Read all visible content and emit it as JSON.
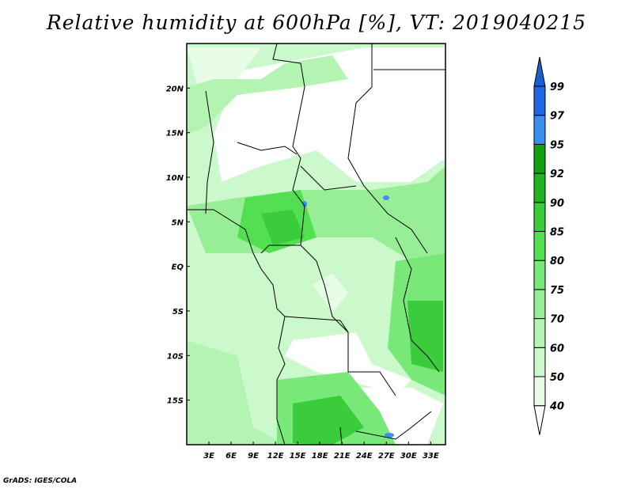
{
  "title": "Relative humidity at 600hPa [%], VT: 2019040215",
  "footer": "GrADS: IGES/COLA",
  "map": {
    "lon_range": [
      0,
      35
    ],
    "lat_range": [
      -20,
      25
    ],
    "x_ticks": [
      {
        "value": 3,
        "label": "3E"
      },
      {
        "value": 6,
        "label": "6E"
      },
      {
        "value": 9,
        "label": "9E"
      },
      {
        "value": 12,
        "label": "12E"
      },
      {
        "value": 15,
        "label": "15E"
      },
      {
        "value": 18,
        "label": "18E"
      },
      {
        "value": 21,
        "label": "21E"
      },
      {
        "value": 24,
        "label": "24E"
      },
      {
        "value": 27,
        "label": "27E"
      },
      {
        "value": 30,
        "label": "30E"
      },
      {
        "value": 33,
        "label": "33E"
      }
    ],
    "y_ticks": [
      {
        "value": 20,
        "label": "20N"
      },
      {
        "value": 15,
        "label": "15N"
      },
      {
        "value": 10,
        "label": "10N"
      },
      {
        "value": 5,
        "label": "5N"
      },
      {
        "value": 0,
        "label": "EQ"
      },
      {
        "value": -5,
        "label": "5S"
      },
      {
        "value": -10,
        "label": "10S"
      },
      {
        "value": -15,
        "label": "15S"
      }
    ]
  },
  "colorbar": {
    "levels": [
      "40",
      "50",
      "60",
      "70",
      "75",
      "80",
      "85",
      "90",
      "92",
      "95",
      "97",
      "99"
    ],
    "colors": [
      "#e8fde8",
      "#cbf9cb",
      "#b3f4b3",
      "#97ee97",
      "#78e878",
      "#52e052",
      "#3acc3a",
      "#20b420",
      "#10a010",
      "#3c8ef0",
      "#2068e0",
      "#1860d0"
    ],
    "below_color": "#ffffff"
  }
}
